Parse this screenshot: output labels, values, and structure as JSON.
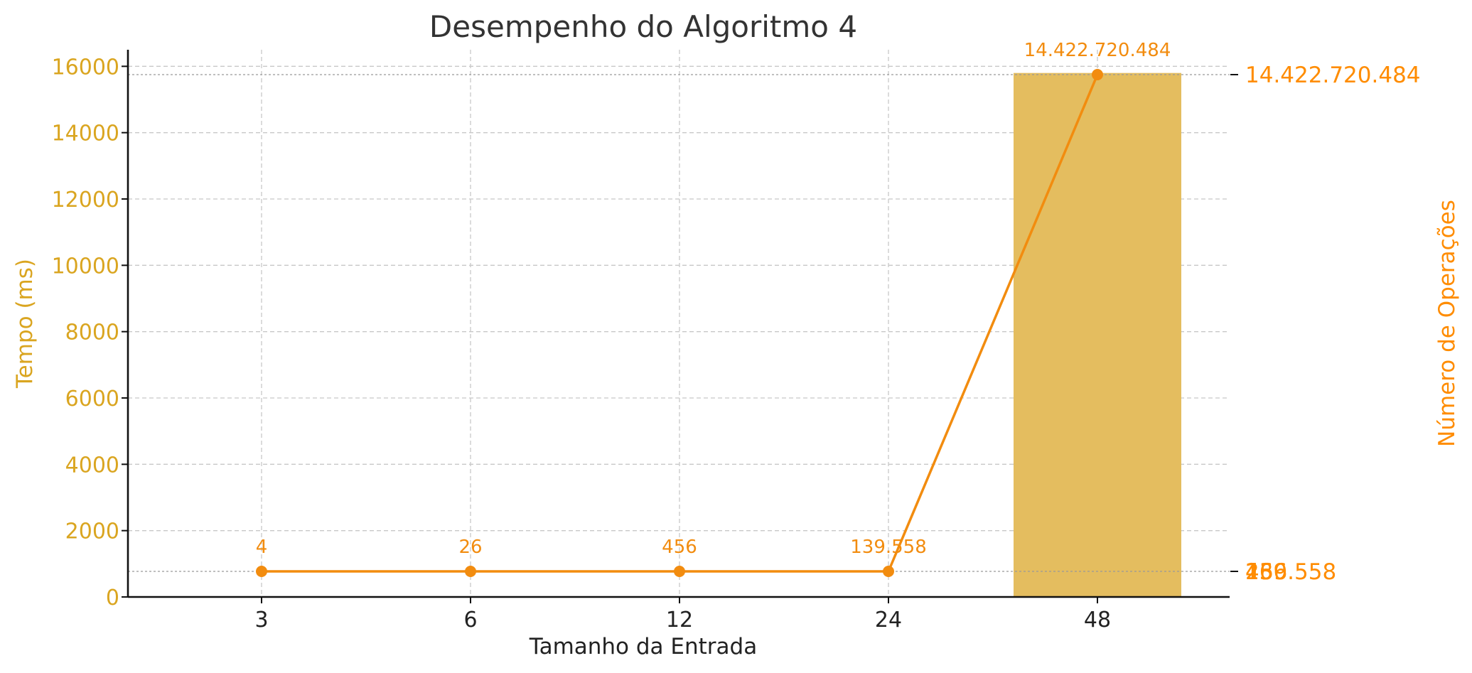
{
  "chart_data": {
    "type": "bar",
    "title": "Desempenho do Algoritmo 4",
    "xlabel": "Tamanho da Entrada",
    "ylabel": "Tempo (ms)",
    "y2label": "Número de Operações",
    "categories": [
      "3",
      "6",
      "12",
      "24",
      "48"
    ],
    "ylim": [
      0,
      16500
    ],
    "yticks": [
      "0",
      "2000",
      "4000",
      "6000",
      "8000",
      "10000",
      "12000",
      "14000",
      "16000"
    ],
    "grid": true,
    "series": [
      {
        "name": "Tempo (ms)",
        "type": "bar",
        "axis": "left",
        "color": "#E4BD5F",
        "values": [
          0,
          0,
          0,
          0,
          15800
        ]
      },
      {
        "name": "Número de Operações",
        "type": "line",
        "axis": "right",
        "color": "#F28C0F",
        "values": [
          4,
          26,
          456,
          139558,
          14422720484
        ],
        "labels": [
          "4",
          "26",
          "456",
          "139.558",
          "14.422.720.484"
        ]
      }
    ],
    "y2ticks": [
      "14.422.720.484",
      "4",
      "26",
      "456",
      "139.558"
    ],
    "colors": {
      "left_axis": "#DAA520",
      "right_axis": "#FF8C00",
      "bar": "#E4BD5F",
      "line": "#F28C0F"
    }
  }
}
